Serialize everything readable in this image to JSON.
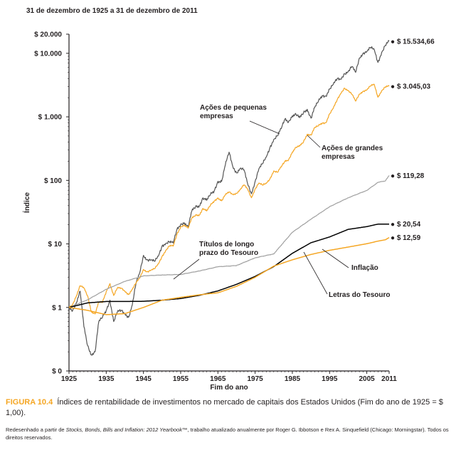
{
  "chart_data": {
    "type": "line",
    "title": "31 de dezembro de 1925 a 31 de dezembro de 2011",
    "xlabel": "Fim do ano",
    "ylabel": "Índice",
    "y_scale": "log",
    "xlim": [
      1925,
      2011
    ],
    "ylim": [
      0.1,
      20000
    ],
    "x_ticks": [
      "1925",
      "1935",
      "1945",
      "1955",
      "1965",
      "1975",
      "1985",
      "1995",
      "2005",
      "2011"
    ],
    "y_ticks": [
      {
        "value": 20000,
        "label": "$ 20.000"
      },
      {
        "value": 10000,
        "label": "$ 10.000"
      },
      {
        "value": 1000,
        "label": "$ 1.000"
      },
      {
        "value": 100,
        "label": "$ 100"
      },
      {
        "value": 10,
        "label": "$ 10"
      },
      {
        "value": 1,
        "label": "$ 1"
      },
      {
        "value": 0.1,
        "label": "$ 0"
      }
    ],
    "grid": false,
    "series": [
      {
        "name": "Ações de pequenas empresas",
        "color": "#555555",
        "end_label": "$ 15.534,66",
        "x": [
          1925,
          1926,
          1927,
          1928,
          1929,
          1930,
          1931,
          1932,
          1933,
          1934,
          1935,
          1936,
          1937,
          1938,
          1939,
          1940,
          1941,
          1942,
          1943,
          1944,
          1945,
          1946,
          1947,
          1948,
          1949,
          1950,
          1951,
          1952,
          1953,
          1954,
          1955,
          1956,
          1957,
          1958,
          1959,
          1960,
          1961,
          1962,
          1963,
          1964,
          1965,
          1966,
          1967,
          1968,
          1969,
          1970,
          1971,
          1972,
          1973,
          1974,
          1975,
          1976,
          1977,
          1978,
          1979,
          1980,
          1981,
          1982,
          1983,
          1984,
          1985,
          1986,
          1987,
          1988,
          1989,
          1990,
          1991,
          1992,
          1993,
          1994,
          1995,
          1996,
          1997,
          1998,
          1999,
          2000,
          2001,
          2002,
          2003,
          2004,
          2005,
          2006,
          2007,
          2008,
          2009,
          2010,
          2011
        ],
        "y": [
          1.0,
          0.9,
          1.2,
          1.8,
          0.5,
          0.25,
          0.18,
          0.2,
          0.6,
          0.7,
          0.9,
          1.3,
          0.6,
          0.85,
          0.9,
          0.8,
          0.7,
          1.1,
          2.4,
          3.5,
          6.6,
          5.6,
          5.6,
          5.3,
          6.4,
          9.3,
          10.2,
          10.8,
          10.3,
          16.9,
          20.4,
          21.5,
          18.2,
          33.1,
          38.6,
          39.6,
          53.0,
          48.6,
          59.9,
          68.0,
          96.5,
          96.0,
          176.0,
          278.0,
          166.0,
          131.0,
          154.0,
          147.0,
          87.8,
          61.5,
          96.0,
          152.0,
          183.0,
          232.0,
          331.0,
          440.0,
          505.0,
          652.0,
          922.0,
          840.0,
          1040.0,
          1088.0,
          968.0,
          1166.0,
          1314.0,
          956.0,
          1395.0,
          1757.0,
          2147.0,
          2131.0,
          2737.0,
          3233.0,
          3950.0,
          3925.0,
          4786.0,
          5108.0,
          6205.0,
          5022.0,
          8384.0,
          10014.0,
          10617.0,
          12331.0,
          11427.0,
          7171.0,
          10306.0,
          13421.0,
          15534.66
        ]
      },
      {
        "name": "Ações de grandes empresas",
        "color": "#f5a623",
        "end_label": "$ 3.045,03",
        "x": [
          1925,
          1926,
          1927,
          1928,
          1929,
          1930,
          1931,
          1932,
          1933,
          1934,
          1935,
          1936,
          1937,
          1938,
          1939,
          1940,
          1941,
          1942,
          1943,
          1944,
          1945,
          1946,
          1947,
          1948,
          1949,
          1950,
          1951,
          1952,
          1953,
          1954,
          1955,
          1956,
          1957,
          1958,
          1959,
          1960,
          1961,
          1962,
          1963,
          1964,
          1965,
          1966,
          1967,
          1968,
          1969,
          1970,
          1971,
          1972,
          1973,
          1974,
          1975,
          1976,
          1977,
          1978,
          1979,
          1980,
          1981,
          1982,
          1983,
          1984,
          1985,
          1986,
          1987,
          1988,
          1989,
          1990,
          1991,
          1992,
          1993,
          1994,
          1995,
          1996,
          1997,
          1998,
          1999,
          2000,
          2001,
          2002,
          2003,
          2004,
          2005,
          2006,
          2007,
          2008,
          2009,
          2010,
          2011
        ],
        "y": [
          1.0,
          1.12,
          1.53,
          2.2,
          2.02,
          1.52,
          0.86,
          0.79,
          1.21,
          1.2,
          1.77,
          2.37,
          1.54,
          2.02,
          2.01,
          1.81,
          1.6,
          1.93,
          2.42,
          2.9,
          3.96,
          3.64,
          3.85,
          4.06,
          4.83,
          6.36,
          7.89,
          9.34,
          9.25,
          14.13,
          18.59,
          19.81,
          17.67,
          25.33,
          28.36,
          28.5,
          36.16,
          33.01,
          40.53,
          47.21,
          53.08,
          47.74,
          59.18,
          65.73,
          60.14,
          62.53,
          71.47,
          85.03,
          72.56,
          53.36,
          73.2,
          90.66,
          84.16,
          89.69,
          106.27,
          140.72,
          133.81,
          162.52,
          199.17,
          211.62,
          279.08,
          330.31,
          347.59,
          405.16,
          533.11,
          516.53,
          673.35,
          724.64,
          797.53,
          808.14,
          1111.65,
          1366.56,
          1822.52,
          2343.32,
          2836.26,
          2577.96,
          2271.38,
          1769.41,
          2276.79,
          2524.59,
          2648.57,
          3066.99,
          3235.38,
          2038.31,
          2577.45,
          2965.67,
          3045.03
        ]
      },
      {
        "name": "Títulos de longo prazo do Tesouro",
        "color": "#a0a0a0",
        "end_label": "$ 119,28",
        "x": [
          1925,
          1930,
          1935,
          1940,
          1945,
          1950,
          1955,
          1960,
          1965,
          1970,
          1975,
          1980,
          1985,
          1990,
          1995,
          2000,
          2005,
          2008,
          2010,
          2011
        ],
        "y": [
          1.0,
          1.32,
          1.93,
          2.57,
          3.14,
          3.24,
          3.3,
          3.75,
          4.37,
          4.56,
          6.04,
          6.96,
          15.24,
          24.47,
          38.45,
          53.2,
          69.47,
          92.94,
          98.32,
          119.28
        ]
      },
      {
        "name": "Letras do Tesouro",
        "color": "#000000",
        "end_label": "$ 20,54",
        "x": [
          1925,
          1930,
          1935,
          1940,
          1945,
          1950,
          1955,
          1960,
          1965,
          1970,
          1975,
          1980,
          1985,
          1990,
          1995,
          2000,
          2005,
          2008,
          2010,
          2011
        ],
        "y": [
          1.0,
          1.18,
          1.24,
          1.24,
          1.25,
          1.3,
          1.38,
          1.55,
          1.82,
          2.31,
          3.08,
          4.39,
          7.11,
          10.43,
          12.87,
          16.93,
          18.71,
          20.48,
          20.52,
          20.54
        ]
      },
      {
        "name": "Inflação",
        "color": "#f5a623",
        "end_label": "$ 12,59",
        "x": [
          1925,
          1930,
          1935,
          1940,
          1945,
          1950,
          1955,
          1960,
          1965,
          1970,
          1975,
          1980,
          1985,
          1990,
          1995,
          2000,
          2005,
          2008,
          2010,
          2011
        ],
        "y": [
          1.0,
          0.9,
          0.77,
          0.8,
          1.0,
          1.3,
          1.44,
          1.58,
          1.7,
          2.15,
          2.98,
          4.47,
          5.62,
          6.82,
          7.93,
          8.92,
          10.07,
          11.06,
          11.62,
          12.59
        ]
      }
    ],
    "annotations": [
      {
        "series": 0,
        "lines": [
          "Ações de pequenas",
          "empresas"
        ]
      },
      {
        "series": 1,
        "lines": [
          "Ações de grandes",
          "empresas"
        ]
      },
      {
        "series": 2,
        "lines": [
          "Títulos de longo",
          "prazo do Tesouro"
        ]
      },
      {
        "series": 4,
        "lines": [
          "Inflação"
        ]
      },
      {
        "series": 3,
        "lines": [
          "Letras do Tesouro"
        ]
      }
    ]
  },
  "caption": {
    "figure_label": "FIGURA 10.4",
    "text": "Índices de rentabilidade de investimentos no mercado de capitais dos Estados Unidos (Fim do ano de 1925 = $ 1,00)."
  },
  "source": {
    "before": "Redesenhado a partir de ",
    "book_title": "Stocks, Bonds, Bills and Inflation: 2012 Yearbook",
    "after": "™, trabalho atualizado anualmente por Roger G. Ibbotson e Rex A. Sinquefield (Chicago: Morningstar). Todos os direitos reservados."
  }
}
